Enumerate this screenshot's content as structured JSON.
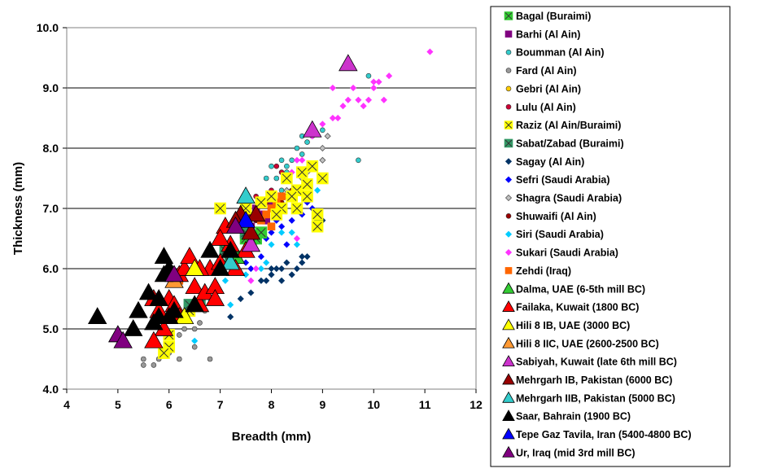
{
  "chart_data": {
    "type": "scatter",
    "xlabel": "Breadth (mm)",
    "ylabel": "Thickness (mm)",
    "xlim": [
      4,
      12
    ],
    "ylim": [
      4.0,
      10.0
    ],
    "x_ticks": [
      "4",
      "5",
      "6",
      "7",
      "8",
      "9",
      "10",
      "11",
      "12"
    ],
    "y_ticks": [
      "4.0",
      "5.0",
      "6.0",
      "7.0",
      "8.0",
      "9.0",
      "10.0"
    ],
    "grid": "horizontal",
    "legend_position": "right",
    "series": [
      {
        "name": "Bagal (Buraimi)",
        "marker": "square-x",
        "color": "#33cc33",
        "points": [
          [
            7.5,
            6.5
          ],
          [
            7.6,
            6.4
          ],
          [
            7.7,
            6.5
          ],
          [
            7.3,
            6.2
          ],
          [
            7.8,
            6.6
          ]
        ]
      },
      {
        "name": "Barhi (Al Ain)",
        "marker": "square",
        "color": "#800080",
        "points": [
          [
            7.6,
            6.7
          ],
          [
            7.8,
            6.9
          ],
          [
            7.9,
            6.8
          ],
          [
            7.7,
            7.0
          ],
          [
            8.0,
            7.1
          ],
          [
            7.8,
            6.6
          ]
        ]
      },
      {
        "name": "Boumman (Al Ain)",
        "marker": "circle",
        "color": "#33cccc",
        "points": [
          [
            7.9,
            7.5
          ],
          [
            8.0,
            7.7
          ],
          [
            8.2,
            7.8
          ],
          [
            8.3,
            7.7
          ],
          [
            8.4,
            7.8
          ],
          [
            8.5,
            8.0
          ],
          [
            8.6,
            8.2
          ],
          [
            8.7,
            8.1
          ],
          [
            8.8,
            8.2
          ],
          [
            9.0,
            8.3
          ],
          [
            9.9,
            9.2
          ],
          [
            9.7,
            7.8
          ],
          [
            8.2,
            7.3
          ],
          [
            8.1,
            7.5
          ],
          [
            8.3,
            7.6
          ],
          [
            8.6,
            7.9
          ]
        ]
      },
      {
        "name": "Fard (Al Ain)",
        "marker": "circle",
        "color": "#999999",
        "points": [
          [
            5.5,
            4.4
          ],
          [
            5.5,
            4.5
          ],
          [
            5.7,
            4.4
          ],
          [
            5.9,
            4.6
          ],
          [
            6.0,
            4.7
          ],
          [
            6.2,
            4.5
          ],
          [
            6.5,
            4.7
          ],
          [
            6.8,
            4.5
          ],
          [
            6.3,
            5.0
          ],
          [
            6.5,
            5.0
          ],
          [
            6.6,
            5.1
          ],
          [
            6.7,
            5.3
          ],
          [
            6.2,
            4.9
          ],
          [
            6.0,
            4.6
          ],
          [
            5.8,
            4.5
          ]
        ]
      },
      {
        "name": "Gebri (Al Ain)",
        "marker": "circle",
        "color": "#ffcc00",
        "points": [
          [
            7.5,
            6.6
          ],
          [
            7.9,
            6.9
          ],
          [
            8.1,
            7.0
          ],
          [
            8.3,
            7.2
          ]
        ]
      },
      {
        "name": "Lulu (Al Ain)",
        "marker": "circle",
        "color": "#cc0033",
        "points": [
          [
            7.5,
            7.0
          ],
          [
            7.7,
            7.2
          ],
          [
            8.0,
            7.3
          ],
          [
            8.2,
            7.6
          ],
          [
            7.9,
            7.1
          ],
          [
            8.1,
            7.7
          ]
        ]
      },
      {
        "name": "Raziz (Al Ain/Buraimi)",
        "marker": "square-x",
        "color": "#ffff00",
        "points": [
          [
            7.0,
            7.0
          ],
          [
            7.5,
            7.0
          ],
          [
            7.8,
            7.1
          ],
          [
            8.0,
            7.2
          ],
          [
            8.2,
            7.0
          ],
          [
            8.3,
            7.5
          ],
          [
            8.5,
            7.3
          ],
          [
            8.6,
            7.6
          ],
          [
            8.7,
            7.4
          ],
          [
            8.8,
            7.7
          ],
          [
            8.9,
            6.9
          ],
          [
            8.9,
            6.7
          ],
          [
            9.0,
            7.5
          ],
          [
            8.5,
            7.0
          ],
          [
            8.7,
            7.2
          ],
          [
            6.0,
            4.7
          ],
          [
            6.0,
            4.9
          ],
          [
            6.2,
            5.2
          ],
          [
            5.9,
            4.6
          ],
          [
            6.4,
            5.3
          ],
          [
            8.4,
            7.2
          ],
          [
            8.1,
            6.9
          ]
        ]
      },
      {
        "name": "Sabat/Zabad (Buraimi)",
        "marker": "square-x",
        "color": "#339966",
        "points": [
          [
            6.4,
            5.4
          ],
          [
            6.6,
            5.4
          ],
          [
            7.1,
            6.3
          ],
          [
            7.5,
            6.6
          ],
          [
            7.2,
            6.1
          ]
        ]
      },
      {
        "name": "Sagay (Al Ain)",
        "marker": "diamond",
        "color": "#003366",
        "points": [
          [
            7.2,
            5.2
          ],
          [
            7.6,
            5.6
          ],
          [
            7.9,
            5.8
          ],
          [
            8.0,
            5.9
          ],
          [
            8.1,
            6.0
          ],
          [
            8.2,
            6.0
          ],
          [
            8.3,
            6.1
          ],
          [
            8.4,
            5.9
          ],
          [
            8.5,
            6.0
          ],
          [
            8.6,
            6.1
          ],
          [
            8.7,
            6.2
          ],
          [
            8.9,
            6.8
          ],
          [
            9.0,
            6.8
          ],
          [
            7.8,
            5.8
          ],
          [
            8.0,
            6.0
          ],
          [
            7.4,
            5.5
          ],
          [
            8.6,
            6.2
          ],
          [
            8.2,
            5.8
          ]
        ]
      },
      {
        "name": "Sefri (Saudi Arabia)",
        "marker": "diamond",
        "color": "#0000ff",
        "points": [
          [
            7.6,
            6.0
          ],
          [
            7.8,
            6.2
          ],
          [
            8.0,
            6.6
          ],
          [
            8.2,
            6.7
          ],
          [
            8.4,
            6.8
          ],
          [
            8.5,
            7.0
          ],
          [
            8.6,
            6.9
          ],
          [
            8.7,
            7.1
          ],
          [
            8.8,
            7.0
          ],
          [
            7.5,
            6.1
          ],
          [
            7.9,
            6.5
          ],
          [
            8.1,
            6.8
          ],
          [
            8.3,
            6.4
          ]
        ]
      },
      {
        "name": "Shagra (Saudi Arabia)",
        "marker": "diamond",
        "color": "#c0c0c0",
        "points": [
          [
            8.3,
            7.3
          ],
          [
            8.6,
            7.5
          ],
          [
            8.8,
            7.7
          ],
          [
            9.0,
            7.8
          ],
          [
            9.0,
            8.0
          ],
          [
            9.1,
            8.2
          ],
          [
            8.4,
            7.2
          ],
          [
            8.7,
            7.6
          ]
        ]
      },
      {
        "name": "Shuwaifi (Al Ain)",
        "marker": "circle",
        "color": "#990000",
        "points": [
          [
            7.7,
            6.8
          ],
          [
            8.0,
            7.0
          ],
          [
            8.2,
            7.1
          ],
          [
            8.4,
            7.3
          ],
          [
            7.6,
            6.9
          ]
        ]
      },
      {
        "name": "Siri (Saudi Arabia)",
        "marker": "diamond",
        "color": "#00ccff",
        "points": [
          [
            6.5,
            4.8
          ],
          [
            6.8,
            5.5
          ],
          [
            7.1,
            5.8
          ],
          [
            7.2,
            5.4
          ],
          [
            7.5,
            5.9
          ],
          [
            7.8,
            6.0
          ],
          [
            8.0,
            6.4
          ],
          [
            8.2,
            6.6
          ],
          [
            8.4,
            6.6
          ],
          [
            8.5,
            6.4
          ],
          [
            8.9,
            7.3
          ],
          [
            7.9,
            6.1
          ]
        ]
      },
      {
        "name": "Sukari (Saudi Arabia)",
        "marker": "diamond",
        "color": "#ff33ff",
        "points": [
          [
            8.4,
            7.6
          ],
          [
            8.5,
            7.8
          ],
          [
            8.6,
            7.8
          ],
          [
            8.8,
            8.2
          ],
          [
            9.0,
            8.4
          ],
          [
            9.2,
            8.5
          ],
          [
            9.3,
            8.5
          ],
          [
            9.4,
            8.7
          ],
          [
            9.5,
            8.8
          ],
          [
            9.6,
            9.0
          ],
          [
            9.7,
            8.8
          ],
          [
            9.8,
            8.7
          ],
          [
            9.9,
            8.8
          ],
          [
            10.0,
            9.0
          ],
          [
            10.1,
            9.1
          ],
          [
            10.2,
            8.8
          ],
          [
            10.3,
            9.2
          ],
          [
            11.1,
            9.6
          ],
          [
            9.2,
            9.0
          ],
          [
            10.0,
            9.1
          ],
          [
            8.5,
            6.5
          ],
          [
            7.7,
            6.0
          ],
          [
            7.6,
            5.8
          ]
        ]
      },
      {
        "name": "Zehdi (Iraq)",
        "marker": "square",
        "color": "#ff6600",
        "points": [
          [
            7.5,
            6.7
          ],
          [
            7.7,
            6.9
          ],
          [
            7.9,
            6.9
          ],
          [
            8.0,
            7.0
          ],
          [
            8.1,
            7.1
          ],
          [
            7.8,
            6.8
          ],
          [
            8.0,
            6.7
          ],
          [
            6.2,
            5.8
          ],
          [
            8.2,
            7.2
          ]
        ]
      },
      {
        "name": "Dalma, UAE (6-5th mill BC)",
        "marker": "triangle",
        "color": "#33cc33",
        "points": [
          [
            7.2,
            6.3
          ],
          [
            7.3,
            6.2
          ]
        ]
      },
      {
        "name": "Failaka, Kuwait (1800 BC)",
        "marker": "triangle",
        "color": "#ff0000",
        "points": [
          [
            5.7,
            5.5
          ],
          [
            5.8,
            5.3
          ],
          [
            5.9,
            5.0
          ],
          [
            6.0,
            5.5
          ],
          [
            6.1,
            5.4
          ],
          [
            6.2,
            5.9
          ],
          [
            6.3,
            6.0
          ],
          [
            6.4,
            6.2
          ],
          [
            6.5,
            5.7
          ],
          [
            6.6,
            5.4
          ],
          [
            6.7,
            5.6
          ],
          [
            6.8,
            6.0
          ],
          [
            6.9,
            5.7
          ],
          [
            7.0,
            6.1
          ],
          [
            7.1,
            6.7
          ],
          [
            7.2,
            6.4
          ],
          [
            7.3,
            6.0
          ],
          [
            7.5,
            6.3
          ],
          [
            5.7,
            4.8
          ],
          [
            6.2,
            5.2
          ],
          [
            6.6,
            6.0
          ],
          [
            7.0,
            6.5
          ],
          [
            6.9,
            5.5
          ]
        ]
      },
      {
        "name": "Hili 8 IB, UAE (3000 BC)",
        "marker": "triangle",
        "color": "#ffff00",
        "points": [
          [
            6.5,
            6.0
          ],
          [
            6.3,
            5.2
          ]
        ]
      },
      {
        "name": "Hili 8 IIC, UAE (2600-2500 BC)",
        "marker": "triangle",
        "color": "#ff9933",
        "points": [
          [
            6.1,
            5.8
          ]
        ]
      },
      {
        "name": "Sabiyah, Kuwait (late 6th mill BC)",
        "marker": "triangle",
        "color": "#cc33cc",
        "points": [
          [
            9.5,
            9.4
          ],
          [
            8.8,
            8.3
          ],
          [
            7.6,
            6.4
          ]
        ]
      },
      {
        "name": "Mehrgarh IB, Pakistan (6000 BC)",
        "marker": "triangle",
        "color": "#990000",
        "points": [
          [
            7.4,
            6.9
          ],
          [
            7.7,
            6.9
          ],
          [
            7.6,
            6.6
          ],
          [
            7.3,
            6.8
          ]
        ]
      },
      {
        "name": "Mehrgarh IIB, Pakistan (5000 BC)",
        "marker": "triangle",
        "color": "#33cccc",
        "points": [
          [
            7.5,
            7.2
          ],
          [
            7.2,
            6.1
          ]
        ]
      },
      {
        "name": "Saar, Bahrain (1900 BC)",
        "marker": "triangle",
        "color": "#000000",
        "points": [
          [
            4.6,
            5.2
          ],
          [
            5.0,
            4.9
          ],
          [
            5.3,
            5.0
          ],
          [
            5.4,
            5.3
          ],
          [
            5.7,
            5.1
          ],
          [
            5.8,
            5.5
          ],
          [
            5.9,
            5.9
          ],
          [
            5.9,
            6.2
          ],
          [
            6.0,
            6.0
          ],
          [
            6.0,
            5.2
          ],
          [
            6.5,
            5.4
          ],
          [
            6.8,
            6.3
          ],
          [
            7.2,
            6.3
          ],
          [
            5.6,
            5.6
          ],
          [
            6.1,
            5.3
          ],
          [
            7.0,
            6.0
          ],
          [
            5.8,
            5.2
          ]
        ]
      },
      {
        "name": "Tepe Gaz Tavila, Iran (5400-4800 BC)",
        "marker": "triangle",
        "color": "#0000ff",
        "points": [
          [
            7.5,
            6.8
          ]
        ]
      },
      {
        "name": "Ur, Iraq (mid 3rd mill BC)",
        "marker": "triangle",
        "color": "#800080",
        "points": [
          [
            5.0,
            4.9
          ],
          [
            5.1,
            4.8
          ],
          [
            6.1,
            5.9
          ],
          [
            7.3,
            6.7
          ]
        ]
      }
    ]
  }
}
